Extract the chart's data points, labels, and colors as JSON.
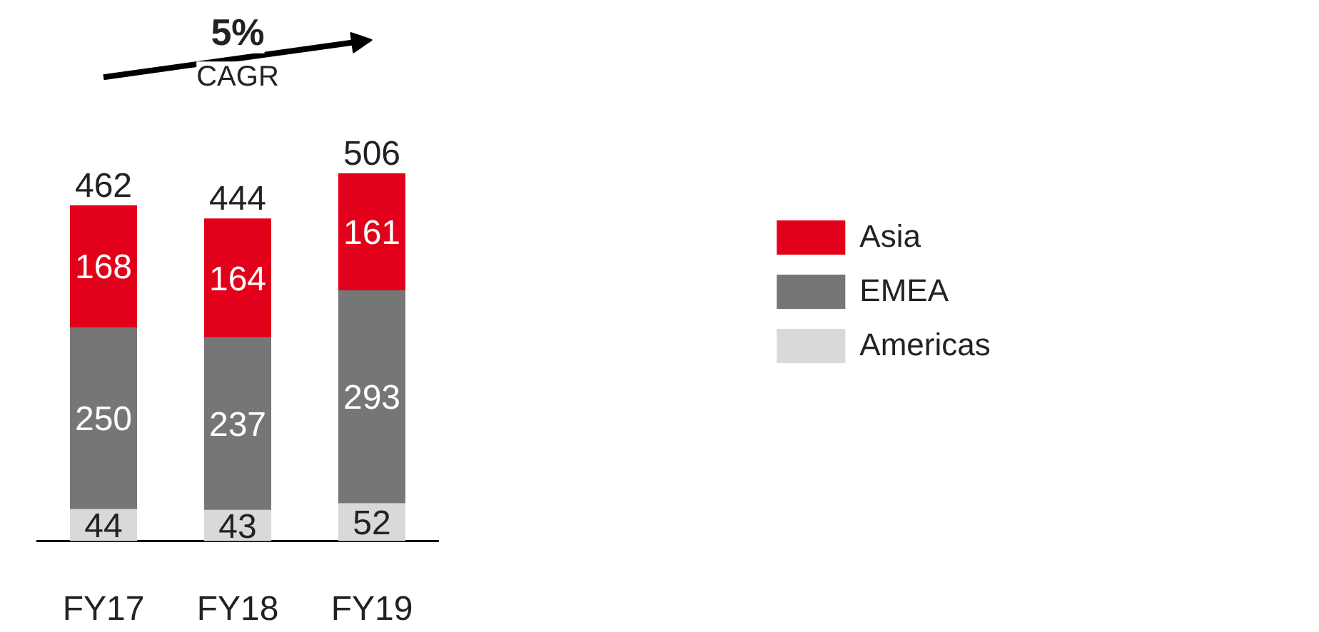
{
  "chart_data": {
    "type": "bar",
    "stacked": true,
    "categories": [
      "FY17",
      "FY18",
      "FY19"
    ],
    "series": [
      {
        "name": "Americas",
        "color": "#d9d9d9",
        "values": [
          44,
          43,
          52
        ]
      },
      {
        "name": "EMEA",
        "color": "#767676",
        "values": [
          250,
          237,
          293
        ]
      },
      {
        "name": "Asia",
        "color": "#e2001a",
        "values": [
          168,
          164,
          161
        ]
      }
    ],
    "data_labels": true,
    "totals": [
      "462",
      "444",
      "506"
    ],
    "annotations": [
      "5%",
      "CAGR"
    ],
    "legend": "right",
    "grid": false
  }
}
